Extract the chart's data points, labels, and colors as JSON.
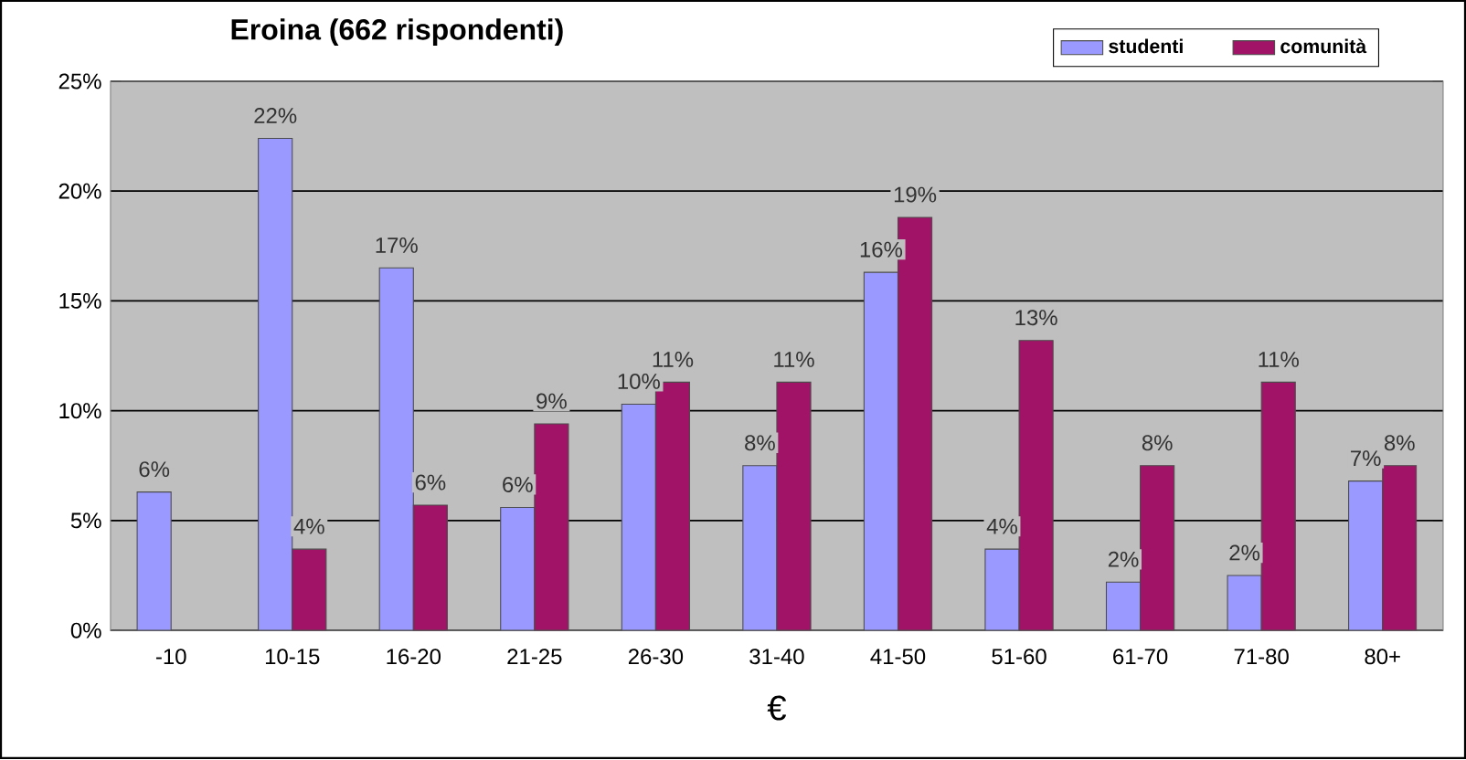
{
  "chart_data": {
    "type": "bar",
    "title": "Eroina (662 rispondenti)",
    "xlabel": "€",
    "categories": [
      "-10",
      "10-15",
      "16-20",
      "21-25",
      "26-30",
      "31-40",
      "41-50",
      "51-60",
      "61-70",
      "71-80",
      "80+"
    ],
    "series": [
      {
        "name": "studenti",
        "color": "#9999ff",
        "values": [
          6.3,
          22.4,
          16.5,
          5.6,
          10.3,
          7.5,
          16.3,
          3.7,
          2.2,
          2.5,
          6.8
        ],
        "value_labels": [
          "6%",
          "22%",
          "17%",
          "6%",
          "10%",
          "8%",
          "16%",
          "4%",
          "2%",
          "2%",
          "7%"
        ]
      },
      {
        "name": "comunità",
        "color": "#a01366",
        "values": [
          null,
          3.7,
          5.7,
          9.4,
          11.3,
          11.3,
          18.8,
          13.2,
          7.5,
          11.3,
          7.5
        ],
        "value_labels": [
          null,
          "4%",
          "6%",
          "9%",
          "11%",
          "11%",
          "19%",
          "13%",
          "8%",
          "11%",
          "8%"
        ]
      }
    ],
    "ylim": [
      0,
      25
    ],
    "yticks": [
      {
        "value": 0,
        "label": "0%"
      },
      {
        "value": 5,
        "label": "5%"
      },
      {
        "value": 10,
        "label": "10%"
      },
      {
        "value": 15,
        "label": "15%"
      },
      {
        "value": 20,
        "label": "20%"
      },
      {
        "value": 25,
        "label": "25%"
      }
    ],
    "grid": "y",
    "legend": "top right"
  }
}
